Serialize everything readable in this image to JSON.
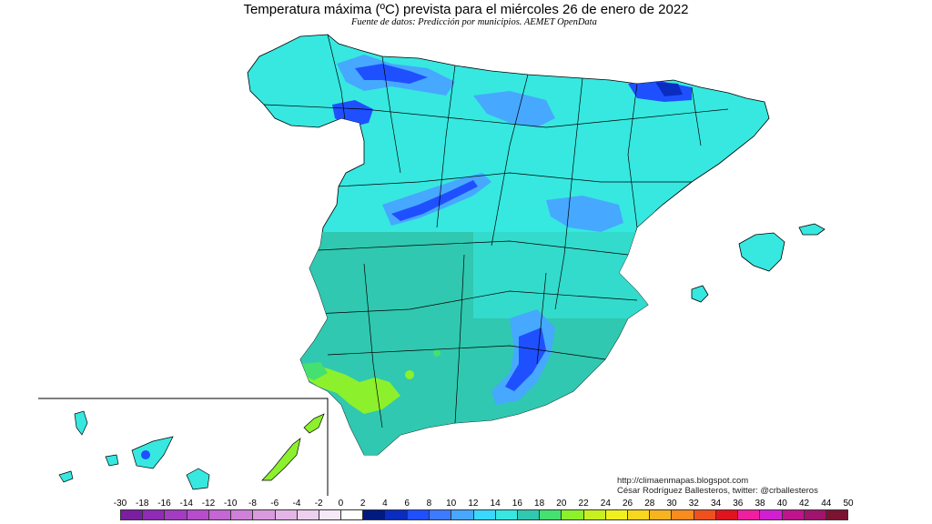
{
  "header": {
    "title": "Temperatura máxima (ºC) prevista para el miércoles 26 de enero de 2022",
    "source": "Fuente de datos: Predicción por municipios. AEMET OpenData"
  },
  "credit": {
    "url": "http://climaenmapas.blogspot.com",
    "author": "César Rodríguez Ballesteros, twitter: @crballesteros"
  },
  "scale": {
    "labels": [
      "-30",
      "-18",
      "-16",
      "-14",
      "-12",
      "-10",
      "-8",
      "-6",
      "-4",
      "-2",
      "0",
      "2",
      "4",
      "6",
      "8",
      "10",
      "12",
      "14",
      "16",
      "18",
      "20",
      "22",
      "24",
      "26",
      "28",
      "30",
      "32",
      "34",
      "36",
      "38",
      "40",
      "42",
      "44",
      "50"
    ],
    "colors": [
      "#7a1fa0",
      "#8f2bb4",
      "#a33cc0",
      "#b54dcc",
      "#c466d4",
      "#cf80d8",
      "#d99ade",
      "#e3b5e6",
      "#ecd0ee",
      "#f6e8f7",
      "#ffffff",
      "#001a80",
      "#0a2cc0",
      "#1f50ff",
      "#3c7bff",
      "#48a8ff",
      "#3ad8ff",
      "#36e8e0",
      "#30c8b0",
      "#44e070",
      "#8cf02c",
      "#c8f01e",
      "#f0f01e",
      "#f8d81e",
      "#f8b41e",
      "#f88c1e",
      "#f0501e",
      "#e0141e",
      "#f01ea0",
      "#d21ed2",
      "#c0148c",
      "#a0146e",
      "#7a1430"
    ]
  },
  "map": {
    "colors": {
      "sea": "#ffffff",
      "t10": "#46a8ff",
      "t12": "#36e8e0",
      "t14": "#30c8b0",
      "t16": "#2ab4a0",
      "t18": "#44e070",
      "t20": "#8cf02c",
      "t4": "#1f50ff",
      "t2": "#0a2cc0",
      "border": "#000000"
    },
    "regions": [
      "Peninsula Iberica",
      "Islas Baleares",
      "Islas Canarias"
    ]
  }
}
